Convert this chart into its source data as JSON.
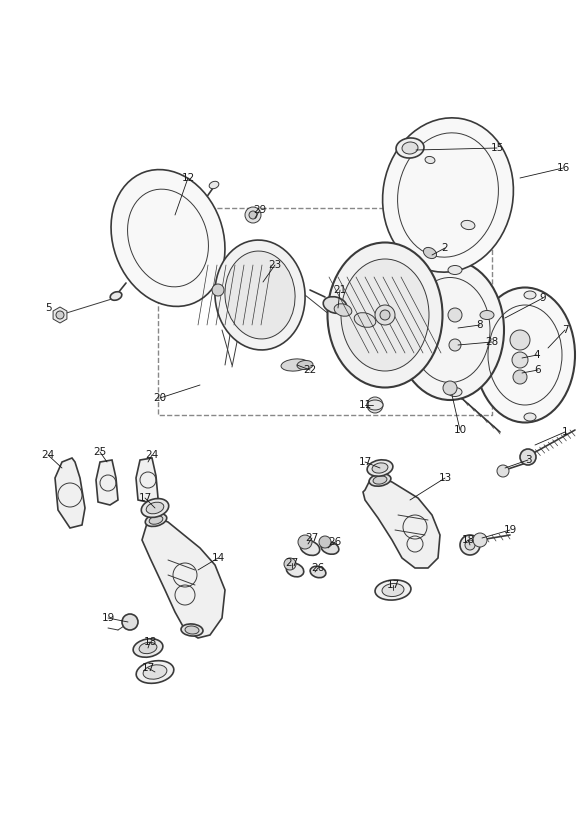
{
  "background_color": "#ffffff",
  "line_color": "#3a3a3a",
  "label_color": "#1a1a1a",
  "fig_width": 5.83,
  "fig_height": 8.24,
  "dpi": 100,
  "label_fontsize": 7.5,
  "coord_system": "pixels_583x824"
}
